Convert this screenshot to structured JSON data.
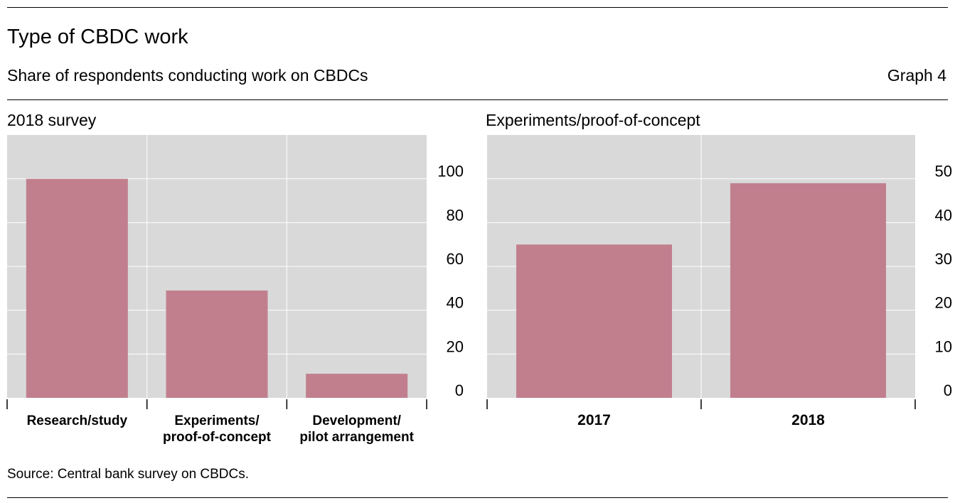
{
  "header": {
    "title": "Type of CBDC work",
    "subtitle": "Share of respondents conducting work on CBDCs",
    "graph_number": "Graph 4"
  },
  "footer": {
    "source": "Source: Central bank survey on CBDCs."
  },
  "colors": {
    "bar": "#c17f8e",
    "plot_background": "#d9d9d9",
    "gridline": "#ffffff"
  },
  "chart_data": [
    {
      "type": "bar",
      "title": "2018 survey",
      "categories": [
        [
          "Research/study"
        ],
        [
          "Experiments/",
          "proof-of-concept"
        ],
        [
          "Development/",
          "pilot arrangement"
        ]
      ],
      "values": [
        100,
        49,
        11
      ],
      "ylim": [
        0,
        120
      ],
      "yticks": [
        0,
        20,
        40,
        60,
        80,
        100
      ],
      "y_axis_side": "right",
      "grid": true,
      "xlabel": "",
      "ylabel": ""
    },
    {
      "type": "bar",
      "title": "Experiments/proof-of-concept",
      "categories": [
        [
          "2017"
        ],
        [
          "2018"
        ]
      ],
      "values": [
        35,
        49
      ],
      "ylim": [
        0,
        60
      ],
      "yticks": [
        0,
        10,
        20,
        30,
        40,
        50
      ],
      "y_axis_side": "right",
      "grid": true,
      "xlabel": "",
      "ylabel": ""
    }
  ]
}
